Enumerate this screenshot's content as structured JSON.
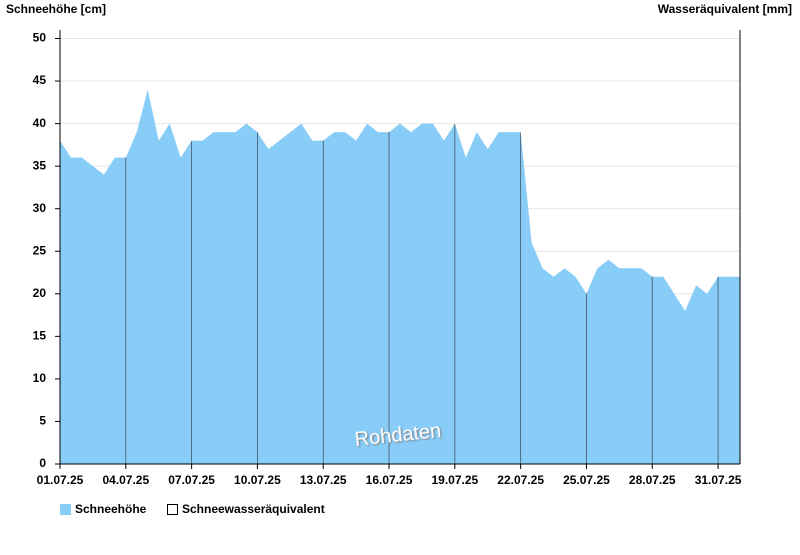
{
  "chart_data": {
    "type": "area",
    "y_label": "Schneehöhe [cm]",
    "y2_label": "Wasseräquivalent [mm]",
    "annotation": "Rohdaten",
    "categories": [
      "01.07.25",
      null,
      null,
      null,
      null,
      null,
      "04.07.25",
      null,
      null,
      null,
      null,
      null,
      "07.07.25",
      null,
      null,
      null,
      null,
      null,
      "10.07.25",
      null,
      null,
      null,
      null,
      null,
      "13.07.25",
      null,
      null,
      null,
      null,
      null,
      "16.07.25",
      null,
      null,
      null,
      null,
      null,
      "19.07.25",
      null,
      null,
      null,
      null,
      null,
      "22.07.25",
      null,
      null,
      null,
      null,
      null,
      "25.07.25",
      null,
      null,
      null,
      null,
      null,
      "28.07.25",
      null,
      null,
      null,
      null,
      null,
      "31.07.25",
      null
    ],
    "series": [
      {
        "name": "Schneehöhe",
        "color": "#88ccf8",
        "values": [
          38,
          36,
          36,
          35,
          34,
          36,
          36,
          39,
          44,
          38,
          40,
          36,
          38,
          38,
          39,
          39,
          39,
          40,
          39,
          37,
          38,
          39,
          40,
          38,
          38,
          39,
          39,
          38,
          40,
          39,
          39,
          40,
          39,
          40,
          40,
          38,
          40,
          36,
          39,
          37,
          39,
          39,
          39,
          26,
          23,
          22,
          23,
          22,
          20,
          23,
          24,
          23,
          23,
          23,
          22,
          22,
          20,
          18,
          21,
          20,
          22,
          22
        ]
      },
      {
        "name": "Schneewasseräquivalent",
        "color": "#ffffff",
        "axis": "y2",
        "values": [
          null,
          null,
          null,
          null,
          null,
          null,
          null,
          null,
          null,
          null,
          null,
          null,
          null,
          null,
          null,
          null,
          null,
          null,
          null,
          null,
          null,
          null,
          null,
          null,
          null,
          null,
          null,
          null,
          null,
          null,
          null,
          null,
          null,
          null,
          null,
          null,
          null,
          null,
          null,
          null,
          null,
          null,
          null,
          null,
          null,
          null,
          null,
          null,
          null,
          null,
          null,
          null,
          null,
          null,
          null,
          null,
          null,
          null,
          null,
          null,
          null,
          null
        ]
      }
    ],
    "ylim": [
      0,
      51
    ],
    "yticks": [
      0,
      5,
      10,
      15,
      20,
      25,
      30,
      35,
      40,
      45,
      50
    ],
    "grid": true
  }
}
